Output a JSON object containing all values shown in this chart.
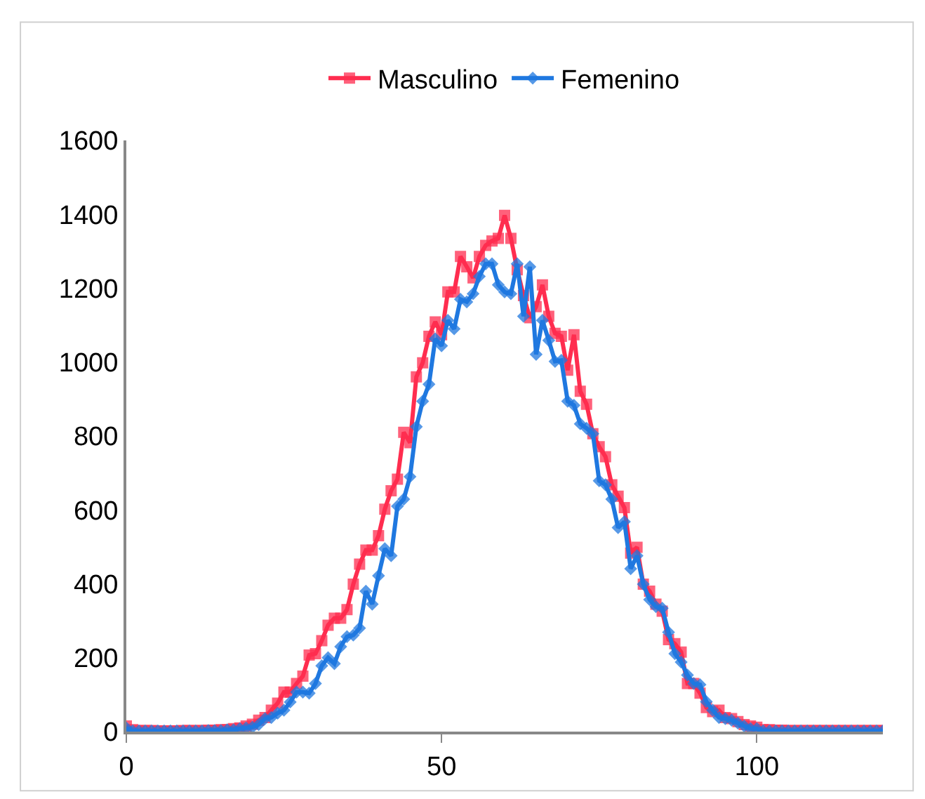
{
  "chart_data": {
    "type": "line",
    "x": [
      0,
      1,
      2,
      3,
      4,
      5,
      6,
      7,
      8,
      9,
      10,
      11,
      12,
      13,
      14,
      15,
      16,
      17,
      18,
      19,
      20,
      21,
      22,
      23,
      24,
      25,
      26,
      27,
      28,
      29,
      30,
      31,
      32,
      33,
      34,
      35,
      36,
      37,
      38,
      39,
      40,
      41,
      42,
      43,
      44,
      45,
      46,
      47,
      48,
      49,
      50,
      51,
      52,
      53,
      54,
      55,
      56,
      57,
      58,
      59,
      60,
      61,
      62,
      63,
      64,
      65,
      66,
      67,
      68,
      69,
      70,
      71,
      72,
      73,
      74,
      75,
      76,
      77,
      78,
      79,
      80,
      81,
      82,
      83,
      84,
      85,
      86,
      87,
      88,
      89,
      90,
      91,
      92,
      93,
      94,
      95,
      96,
      97,
      98,
      99,
      100,
      101,
      102,
      103,
      104,
      105,
      106,
      107,
      108,
      109,
      110,
      111,
      112,
      113,
      114,
      115,
      116,
      117,
      118,
      119,
      120
    ],
    "series": [
      {
        "name": "Masculino",
        "color": "#ff2d4f",
        "marker": "square",
        "values": [
          15,
          5,
          3,
          3,
          3,
          2,
          2,
          2,
          2,
          3,
          3,
          3,
          3,
          4,
          4,
          5,
          5,
          8,
          10,
          15,
          20,
          31,
          38,
          58,
          77,
          107,
          107,
          130,
          150,
          207,
          211,
          246,
          288,
          307,
          307,
          330,
          399,
          453,
          491,
          491,
          530,
          602,
          652,
          683,
          810,
          782,
          960,
          998,
          1070,
          1109,
          1074,
          1190,
          1190,
          1286,
          1258,
          1228,
          1286,
          1316,
          1328,
          1335,
          1397,
          1335,
          1250,
          1180,
          1120,
          1150,
          1209,
          1124,
          1078,
          1070,
          978,
          1074,
          921,
          886,
          806,
          771,
          744,
          668,
          637,
          606,
          483,
          499,
          399,
          380,
          345,
          326,
          249,
          238,
          215,
          130,
          130,
          104,
          65,
          54,
          58,
          38,
          35,
          27,
          19,
          15,
          12,
          5,
          5,
          4,
          4,
          3,
          3,
          3,
          3,
          3,
          3,
          3,
          3,
          3,
          3,
          3,
          3,
          3,
          3,
          3,
          3
        ]
      },
      {
        "name": "Femenino",
        "color": "#1f78e0",
        "marker": "diamond",
        "values": [
          10,
          2,
          2,
          2,
          2,
          2,
          2,
          2,
          2,
          2,
          2,
          2,
          2,
          3,
          3,
          3,
          5,
          5,
          8,
          10,
          12,
          19,
          35,
          38,
          50,
          58,
          80,
          107,
          107,
          104,
          130,
          178,
          200,
          184,
          230,
          257,
          261,
          280,
          380,
          345,
          422,
          495,
          476,
          610,
          629,
          690,
          825,
          894,
          940,
          1063,
          1044,
          1113,
          1090,
          1170,
          1163,
          1185,
          1232,
          1266,
          1266,
          1209,
          1190,
          1185,
          1266,
          1124,
          1258,
          1021,
          1113,
          1059,
          1002,
          1005,
          894,
          883,
          833,
          821,
          806,
          679,
          668,
          629,
          552,
          568,
          441,
          476,
          399,
          357,
          338,
          334,
          269,
          211,
          188,
          153,
          130,
          127,
          81,
          58,
          38,
          35,
          31,
          23,
          15,
          8,
          8,
          2,
          2,
          2,
          2,
          2,
          2,
          2,
          2,
          2,
          2,
          2,
          2,
          2,
          2,
          2,
          2,
          2,
          2,
          2,
          2
        ]
      }
    ],
    "xlim": [
      0,
      120
    ],
    "xticks": [
      0,
      50,
      100
    ],
    "ylim": [
      0,
      1600
    ],
    "yticks": [
      0,
      200,
      400,
      600,
      800,
      1000,
      1200,
      1400,
      1600
    ],
    "legend": "top"
  }
}
